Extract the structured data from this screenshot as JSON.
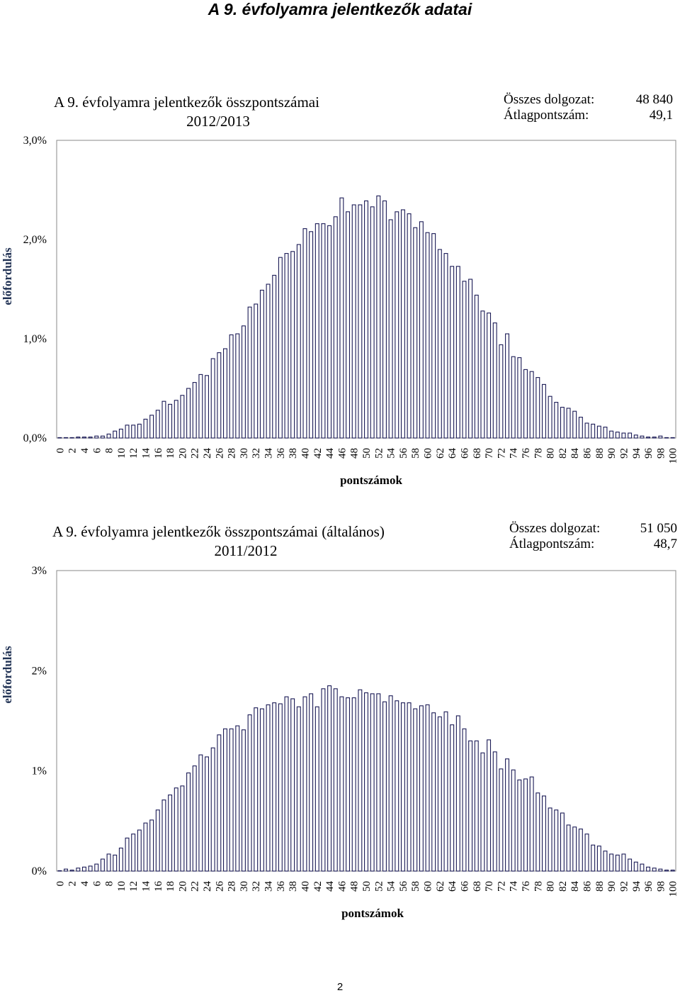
{
  "page": {
    "title": "A 9. évfolyamra jelentkezők adatai",
    "page_number": "2"
  },
  "chart_data": [
    {
      "type": "bar",
      "title": "A 9. évfolyamra jelentkezők összpontszámai",
      "subtitle": "2012/2013",
      "xlabel": "pontszámok",
      "ylabel": "előfordulás",
      "ylim": [
        0,
        3.0
      ],
      "yticks": [
        0,
        1,
        2,
        3
      ],
      "ytick_labels": [
        "0,0%",
        "1,0%",
        "2,0%",
        "3,0%"
      ],
      "value_unit": "%",
      "grid": false,
      "stats": [
        {
          "label": "Összes dolgozat:",
          "value": "48 840"
        },
        {
          "label": "Átlagpontszám:",
          "value": "49,1"
        }
      ],
      "xtick_labels": [
        "0",
        "2",
        "4",
        "6",
        "8",
        "10",
        "12",
        "14",
        "16",
        "18",
        "20",
        "22",
        "24",
        "26",
        "28",
        "30",
        "32",
        "34",
        "36",
        "38",
        "40",
        "42",
        "44",
        "46",
        "48",
        "50",
        "52",
        "54",
        "56",
        "58",
        "60",
        "62",
        "64",
        "66",
        "68",
        "70",
        "72",
        "74",
        "76",
        "78",
        "80",
        "82",
        "84",
        "86",
        "88",
        "90",
        "92",
        "94",
        "96",
        "98",
        "100"
      ],
      "categories": [
        0,
        1,
        2,
        3,
        4,
        5,
        6,
        7,
        8,
        9,
        10,
        11,
        12,
        13,
        14,
        15,
        16,
        17,
        18,
        19,
        20,
        21,
        22,
        23,
        24,
        25,
        26,
        27,
        28,
        29,
        30,
        31,
        32,
        33,
        34,
        35,
        36,
        37,
        38,
        39,
        40,
        41,
        42,
        43,
        44,
        45,
        46,
        47,
        48,
        49,
        50,
        51,
        52,
        53,
        54,
        55,
        56,
        57,
        58,
        59,
        60,
        61,
        62,
        63,
        64,
        65,
        66,
        67,
        68,
        69,
        70,
        71,
        72,
        73,
        74,
        75,
        76,
        77,
        78,
        79,
        80,
        81,
        82,
        83,
        84,
        85,
        86,
        87,
        88,
        89,
        90,
        91,
        92,
        93,
        94,
        95,
        96,
        97,
        98,
        99,
        100
      ],
      "values": [
        0.0,
        0.0,
        0.0,
        0.01,
        0.01,
        0.01,
        0.02,
        0.02,
        0.04,
        0.07,
        0.09,
        0.13,
        0.13,
        0.14,
        0.19,
        0.23,
        0.28,
        0.37,
        0.34,
        0.38,
        0.43,
        0.5,
        0.56,
        0.64,
        0.63,
        0.8,
        0.86,
        0.9,
        1.04,
        1.05,
        1.13,
        1.32,
        1.35,
        1.49,
        1.55,
        1.64,
        1.82,
        1.86,
        1.88,
        1.95,
        2.11,
        2.08,
        2.16,
        2.16,
        2.14,
        2.23,
        2.42,
        2.28,
        2.35,
        2.35,
        2.39,
        2.33,
        2.44,
        2.39,
        2.2,
        2.28,
        2.3,
        2.26,
        2.12,
        2.18,
        2.07,
        2.06,
        1.9,
        1.86,
        1.73,
        1.73,
        1.58,
        1.6,
        1.44,
        1.28,
        1.26,
        1.16,
        0.94,
        1.05,
        0.82,
        0.81,
        0.69,
        0.67,
        0.61,
        0.54,
        0.42,
        0.36,
        0.31,
        0.3,
        0.27,
        0.21,
        0.15,
        0.14,
        0.12,
        0.11,
        0.07,
        0.06,
        0.05,
        0.05,
        0.03,
        0.02,
        0.01,
        0.01,
        0.02,
        0.0,
        0.0
      ]
    },
    {
      "type": "bar",
      "title": "A 9. évfolyamra jelentkezők összpontszámai (általános)",
      "subtitle": "2011/2012",
      "xlabel": "pontszámok",
      "ylabel": "előfordulás",
      "ylim": [
        0,
        3.0
      ],
      "yticks": [
        0,
        1,
        2,
        3
      ],
      "ytick_labels": [
        "0%",
        "1%",
        "2%",
        "3%"
      ],
      "value_unit": "%",
      "grid": false,
      "stats": [
        {
          "label": "Összes dolgozat:",
          "value": "51 050"
        },
        {
          "label": "Átlagpontszám:",
          "value": "48,7"
        }
      ],
      "xtick_labels": [
        "0",
        "2",
        "4",
        "6",
        "8",
        "10",
        "12",
        "14",
        "16",
        "18",
        "20",
        "22",
        "24",
        "26",
        "28",
        "30",
        "32",
        "34",
        "36",
        "38",
        "40",
        "42",
        "44",
        "46",
        "48",
        "50",
        "52",
        "54",
        "56",
        "58",
        "60",
        "62",
        "64",
        "66",
        "68",
        "70",
        "72",
        "74",
        "76",
        "78",
        "80",
        "82",
        "84",
        "86",
        "88",
        "90",
        "92",
        "94",
        "96",
        "98",
        "100"
      ],
      "categories": [
        0,
        1,
        2,
        3,
        4,
        5,
        6,
        7,
        8,
        9,
        10,
        11,
        12,
        13,
        14,
        15,
        16,
        17,
        18,
        19,
        20,
        21,
        22,
        23,
        24,
        25,
        26,
        27,
        28,
        29,
        30,
        31,
        32,
        33,
        34,
        35,
        36,
        37,
        38,
        39,
        40,
        41,
        42,
        43,
        44,
        45,
        46,
        47,
        48,
        49,
        50,
        51,
        52,
        53,
        54,
        55,
        56,
        57,
        58,
        59,
        60,
        61,
        62,
        63,
        64,
        65,
        66,
        67,
        68,
        69,
        70,
        71,
        72,
        73,
        74,
        75,
        76,
        77,
        78,
        79,
        80,
        81,
        82,
        83,
        84,
        85,
        86,
        87,
        88,
        89,
        90,
        91,
        92,
        93,
        94,
        95,
        96,
        97,
        98,
        99,
        100
      ],
      "values": [
        0.0,
        0.02,
        0.01,
        0.03,
        0.04,
        0.05,
        0.07,
        0.12,
        0.17,
        0.16,
        0.23,
        0.33,
        0.37,
        0.41,
        0.48,
        0.51,
        0.61,
        0.71,
        0.76,
        0.83,
        0.85,
        0.98,
        1.05,
        1.16,
        1.14,
        1.23,
        1.36,
        1.42,
        1.42,
        1.45,
        1.41,
        1.56,
        1.63,
        1.62,
        1.66,
        1.68,
        1.67,
        1.74,
        1.72,
        1.64,
        1.74,
        1.77,
        1.64,
        1.82,
        1.85,
        1.82,
        1.74,
        1.73,
        1.73,
        1.81,
        1.78,
        1.77,
        1.77,
        1.69,
        1.75,
        1.7,
        1.68,
        1.68,
        1.62,
        1.65,
        1.66,
        1.58,
        1.54,
        1.59,
        1.46,
        1.55,
        1.42,
        1.3,
        1.3,
        1.18,
        1.31,
        1.19,
        1.02,
        1.12,
        1.01,
        0.91,
        0.92,
        0.94,
        0.78,
        0.75,
        0.63,
        0.61,
        0.58,
        0.46,
        0.44,
        0.42,
        0.37,
        0.26,
        0.25,
        0.2,
        0.17,
        0.16,
        0.17,
        0.12,
        0.09,
        0.07,
        0.04,
        0.03,
        0.02,
        0.01,
        0.01
      ]
    }
  ]
}
